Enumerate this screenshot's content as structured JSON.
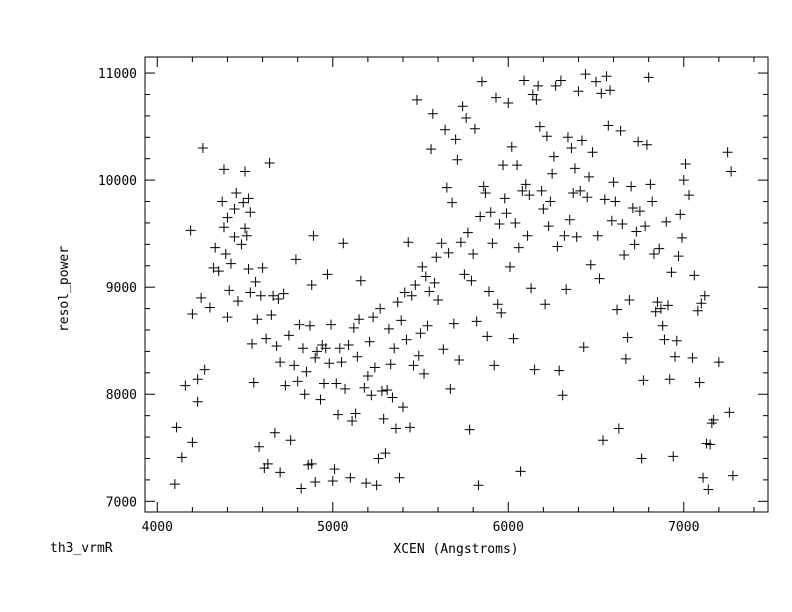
{
  "chart_data": {
    "type": "scatter",
    "xlabel": "XCEN (Angstroms)",
    "ylabel": "resol_power",
    "corner_label": "th3_vrmR",
    "xlim": [
      3930,
      7480
    ],
    "ylim": [
      6900,
      11150
    ],
    "xticks": [
      4000,
      5000,
      6000,
      7000
    ],
    "yticks": [
      7000,
      8000,
      9000,
      10000,
      11000
    ],
    "xtick_labels": [
      "4000",
      "5000",
      "6000",
      "7000"
    ],
    "ytick_labels": [
      "7000",
      "8000",
      "9000",
      "10000",
      "11000"
    ],
    "marker": "plus",
    "color": "#000000",
    "points": [
      [
        4100,
        7160
      ],
      [
        4110,
        7690
      ],
      [
        4140,
        7410
      ],
      [
        4160,
        8080
      ],
      [
        4200,
        7550
      ],
      [
        4200,
        8750
      ],
      [
        4190,
        9530
      ],
      [
        4230,
        7930
      ],
      [
        4230,
        8140
      ],
      [
        4250,
        8900
      ],
      [
        4260,
        10300
      ],
      [
        4270,
        8230
      ],
      [
        4300,
        8810
      ],
      [
        4320,
        9180
      ],
      [
        4330,
        9370
      ],
      [
        4350,
        9150
      ],
      [
        4370,
        9800
      ],
      [
        4380,
        10100
      ],
      [
        4380,
        9560
      ],
      [
        4390,
        9310
      ],
      [
        4400,
        8720
      ],
      [
        4400,
        9650
      ],
      [
        4410,
        8970
      ],
      [
        4420,
        9220
      ],
      [
        4440,
        9470
      ],
      [
        4440,
        9730
      ],
      [
        4450,
        9880
      ],
      [
        4460,
        8870
      ],
      [
        4480,
        9400
      ],
      [
        4490,
        9790
      ],
      [
        4500,
        9550
      ],
      [
        4500,
        10080
      ],
      [
        4510,
        9480
      ],
      [
        4520,
        9170
      ],
      [
        4520,
        9830
      ],
      [
        4530,
        8950
      ],
      [
        4530,
        9700
      ],
      [
        4540,
        8470
      ],
      [
        4550,
        8110
      ],
      [
        4560,
        9050
      ],
      [
        4570,
        8700
      ],
      [
        4580,
        7510
      ],
      [
        4590,
        8920
      ],
      [
        4600,
        9180
      ],
      [
        4610,
        7310
      ],
      [
        4620,
        8520
      ],
      [
        4630,
        7350
      ],
      [
        4640,
        10160
      ],
      [
        4650,
        8740
      ],
      [
        4660,
        8920
      ],
      [
        4670,
        7640
      ],
      [
        4680,
        8450
      ],
      [
        4690,
        8890
      ],
      [
        4700,
        7270
      ],
      [
        4700,
        8300
      ],
      [
        4720,
        8940
      ],
      [
        4730,
        8080
      ],
      [
        4750,
        8550
      ],
      [
        4760,
        7570
      ],
      [
        4780,
        8270
      ],
      [
        4790,
        9260
      ],
      [
        4800,
        8120
      ],
      [
        4810,
        8650
      ],
      [
        4820,
        7120
      ],
      [
        4830,
        8430
      ],
      [
        4840,
        8000
      ],
      [
        4850,
        8210
      ],
      [
        4860,
        7340
      ],
      [
        4870,
        8640
      ],
      [
        4880,
        7350
      ],
      [
        4880,
        9020
      ],
      [
        4890,
        9480
      ],
      [
        4900,
        7180
      ],
      [
        4900,
        8340
      ],
      [
        4910,
        8400
      ],
      [
        4930,
        7950
      ],
      [
        4940,
        8460
      ],
      [
        4950,
        8100
      ],
      [
        4960,
        8430
      ],
      [
        4970,
        9120
      ],
      [
        4980,
        8290
      ],
      [
        4990,
        8650
      ],
      [
        5000,
        7190
      ],
      [
        5010,
        7300
      ],
      [
        5020,
        8100
      ],
      [
        5030,
        7810
      ],
      [
        5040,
        8430
      ],
      [
        5050,
        8300
      ],
      [
        5060,
        9410
      ],
      [
        5070,
        8050
      ],
      [
        5090,
        8460
      ],
      [
        5100,
        7220
      ],
      [
        5110,
        7750
      ],
      [
        5120,
        8620
      ],
      [
        5130,
        7820
      ],
      [
        5140,
        8350
      ],
      [
        5150,
        8700
      ],
      [
        5160,
        9060
      ],
      [
        5180,
        8060
      ],
      [
        5190,
        7170
      ],
      [
        5200,
        8170
      ],
      [
        5210,
        8490
      ],
      [
        5220,
        7990
      ],
      [
        5230,
        8720
      ],
      [
        5240,
        8250
      ],
      [
        5250,
        7150
      ],
      [
        5260,
        7400
      ],
      [
        5270,
        8800
      ],
      [
        5280,
        8030
      ],
      [
        5290,
        7770
      ],
      [
        5300,
        7450
      ],
      [
        5310,
        8040
      ],
      [
        5320,
        8610
      ],
      [
        5330,
        8280
      ],
      [
        5340,
        7970
      ],
      [
        5350,
        8430
      ],
      [
        5360,
        7680
      ],
      [
        5370,
        8860
      ],
      [
        5380,
        7220
      ],
      [
        5390,
        8690
      ],
      [
        5400,
        7880
      ],
      [
        5410,
        8950
      ],
      [
        5420,
        8510
      ],
      [
        5430,
        9420
      ],
      [
        5440,
        7690
      ],
      [
        5450,
        8920
      ],
      [
        5460,
        8270
      ],
      [
        5470,
        9020
      ],
      [
        5480,
        10750
      ],
      [
        5490,
        8360
      ],
      [
        5500,
        8570
      ],
      [
        5510,
        9190
      ],
      [
        5520,
        8190
      ],
      [
        5530,
        9100
      ],
      [
        5540,
        8640
      ],
      [
        5550,
        8960
      ],
      [
        5560,
        10290
      ],
      [
        5570,
        10620
      ],
      [
        5580,
        9040
      ],
      [
        5590,
        9280
      ],
      [
        5600,
        8880
      ],
      [
        5620,
        9410
      ],
      [
        5630,
        8420
      ],
      [
        5640,
        10470
      ],
      [
        5650,
        9930
      ],
      [
        5660,
        9320
      ],
      [
        5670,
        8050
      ],
      [
        5680,
        9790
      ],
      [
        5690,
        8660
      ],
      [
        5700,
        10380
      ],
      [
        5710,
        10190
      ],
      [
        5720,
        8320
      ],
      [
        5730,
        9420
      ],
      [
        5740,
        10690
      ],
      [
        5750,
        9120
      ],
      [
        5760,
        10580
      ],
      [
        5770,
        9510
      ],
      [
        5780,
        7670
      ],
      [
        5790,
        9060
      ],
      [
        5800,
        9310
      ],
      [
        5810,
        10480
      ],
      [
        5820,
        8680
      ],
      [
        5830,
        7150
      ],
      [
        5840,
        9660
      ],
      [
        5850,
        10920
      ],
      [
        5860,
        9940
      ],
      [
        5870,
        9880
      ],
      [
        5880,
        8540
      ],
      [
        5890,
        8960
      ],
      [
        5900,
        9700
      ],
      [
        5910,
        9410
      ],
      [
        5920,
        8270
      ],
      [
        5930,
        10770
      ],
      [
        5940,
        8840
      ],
      [
        5950,
        9590
      ],
      [
        5960,
        8760
      ],
      [
        5970,
        10140
      ],
      [
        5980,
        9830
      ],
      [
        5990,
        9690
      ],
      [
        6000,
        10720
      ],
      [
        6010,
        9190
      ],
      [
        6020,
        10310
      ],
      [
        6030,
        8520
      ],
      [
        6040,
        9600
      ],
      [
        6050,
        10140
      ],
      [
        6060,
        9370
      ],
      [
        6070,
        7280
      ],
      [
        6080,
        9900
      ],
      [
        6090,
        10930
      ],
      [
        6100,
        9960
      ],
      [
        6110,
        9480
      ],
      [
        6120,
        9860
      ],
      [
        6130,
        8990
      ],
      [
        6140,
        10800
      ],
      [
        6150,
        8230
      ],
      [
        6160,
        10750
      ],
      [
        6170,
        10880
      ],
      [
        6180,
        10500
      ],
      [
        6190,
        9900
      ],
      [
        6200,
        9730
      ],
      [
        6210,
        8840
      ],
      [
        6220,
        10410
      ],
      [
        6230,
        9570
      ],
      [
        6240,
        9800
      ],
      [
        6250,
        10060
      ],
      [
        6260,
        10220
      ],
      [
        6270,
        10880
      ],
      [
        6280,
        9380
      ],
      [
        6290,
        8220
      ],
      [
        6300,
        10930
      ],
      [
        6310,
        7990
      ],
      [
        6320,
        9480
      ],
      [
        6330,
        8980
      ],
      [
        6340,
        10400
      ],
      [
        6350,
        9630
      ],
      [
        6360,
        10300
      ],
      [
        6370,
        9880
      ],
      [
        6380,
        10110
      ],
      [
        6390,
        9470
      ],
      [
        6400,
        10830
      ],
      [
        6410,
        9900
      ],
      [
        6420,
        10370
      ],
      [
        6430,
        8440
      ],
      [
        6440,
        10990
      ],
      [
        6450,
        9840
      ],
      [
        6460,
        10030
      ],
      [
        6470,
        9210
      ],
      [
        6480,
        10260
      ],
      [
        6500,
        10920
      ],
      [
        6510,
        9480
      ],
      [
        6520,
        9080
      ],
      [
        6530,
        10810
      ],
      [
        6540,
        7570
      ],
      [
        6550,
        9820
      ],
      [
        6560,
        10970
      ],
      [
        6570,
        10510
      ],
      [
        6580,
        10840
      ],
      [
        6590,
        9620
      ],
      [
        6600,
        9980
      ],
      [
        6610,
        9800
      ],
      [
        6620,
        8790
      ],
      [
        6630,
        7680
      ],
      [
        6640,
        10460
      ],
      [
        6650,
        9590
      ],
      [
        6660,
        9300
      ],
      [
        6670,
        8330
      ],
      [
        6680,
        8530
      ],
      [
        6690,
        8880
      ],
      [
        6700,
        9940
      ],
      [
        6710,
        9740
      ],
      [
        6720,
        9400
      ],
      [
        6730,
        9520
      ],
      [
        6740,
        10360
      ],
      [
        6750,
        9710
      ],
      [
        6760,
        7400
      ],
      [
        6770,
        8130
      ],
      [
        6780,
        9570
      ],
      [
        6790,
        10330
      ],
      [
        6800,
        10960
      ],
      [
        6810,
        9960
      ],
      [
        6820,
        9800
      ],
      [
        6830,
        9310
      ],
      [
        6840,
        8770
      ],
      [
        6850,
        8860
      ],
      [
        6860,
        9360
      ],
      [
        6870,
        8800
      ],
      [
        6880,
        8640
      ],
      [
        6890,
        8510
      ],
      [
        6900,
        9610
      ],
      [
        6910,
        8830
      ],
      [
        6920,
        8140
      ],
      [
        6930,
        9140
      ],
      [
        6940,
        7420
      ],
      [
        6950,
        8350
      ],
      [
        6960,
        8500
      ],
      [
        6970,
        9290
      ],
      [
        6980,
        9680
      ],
      [
        6990,
        9460
      ],
      [
        7000,
        10000
      ],
      [
        7010,
        10150
      ],
      [
        7030,
        9860
      ],
      [
        7050,
        8340
      ],
      [
        7060,
        9110
      ],
      [
        7080,
        8780
      ],
      [
        7090,
        8110
      ],
      [
        7100,
        8850
      ],
      [
        7110,
        7220
      ],
      [
        7120,
        8920
      ],
      [
        7130,
        7540
      ],
      [
        7140,
        7110
      ],
      [
        7150,
        7530
      ],
      [
        7160,
        7730
      ],
      [
        7170,
        7760
      ],
      [
        7200,
        8300
      ],
      [
        7250,
        10260
      ],
      [
        7260,
        7830
      ],
      [
        7270,
        10080
      ],
      [
        7280,
        7240
      ]
    ]
  }
}
